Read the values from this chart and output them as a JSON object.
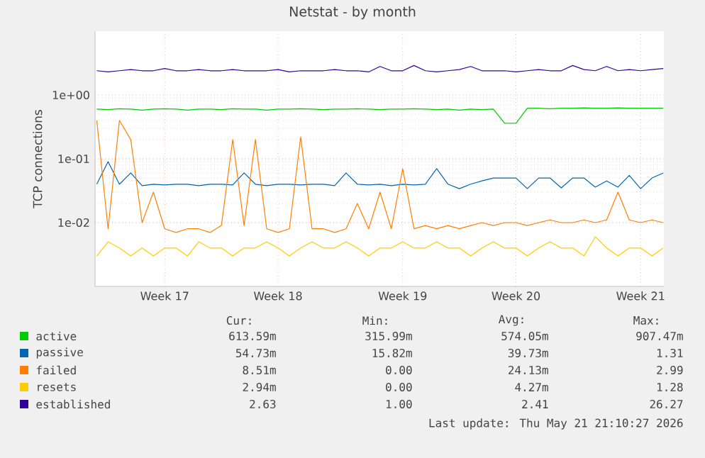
{
  "chart_data": {
    "type": "line",
    "title": "Netstat - by month",
    "ylabel": "TCP connections",
    "log": true,
    "grid": true,
    "legend": "bottom",
    "ylim": [
      0.001,
      10
    ],
    "yticks": [
      {
        "value": 0.01,
        "label": "1e-02"
      },
      {
        "value": 0.1,
        "label": "1e-01"
      },
      {
        "value": 1,
        "label": "1e+00"
      }
    ],
    "categories": [
      null,
      null,
      null,
      null,
      null,
      null,
      "Week 17",
      null,
      null,
      null,
      null,
      null,
      null,
      null,
      null,
      null,
      "Week 18",
      null,
      null,
      null,
      null,
      null,
      null,
      null,
      null,
      null,
      null,
      "Week 19",
      null,
      null,
      null,
      null,
      null,
      null,
      null,
      null,
      null,
      "Week 20",
      null,
      null,
      null,
      null,
      null,
      null,
      null,
      null,
      null,
      null,
      "Week 21",
      null,
      null
    ],
    "series": [
      {
        "name": "active",
        "color": "#00cc00",
        "values": [
          0.6,
          0.59,
          0.61,
          0.6,
          0.58,
          0.6,
          0.61,
          0.6,
          0.58,
          0.6,
          0.6,
          0.59,
          0.61,
          0.6,
          0.6,
          0.58,
          0.6,
          0.6,
          0.61,
          0.6,
          0.59,
          0.6,
          0.6,
          0.61,
          0.6,
          0.59,
          0.6,
          0.6,
          0.61,
          0.6,
          0.59,
          0.6,
          0.58,
          0.6,
          0.59,
          0.6,
          0.36,
          0.36,
          0.62,
          0.62,
          0.61,
          0.62,
          0.62,
          0.63,
          0.62,
          0.62,
          0.63,
          0.62,
          0.62,
          0.62,
          0.62
        ]
      },
      {
        "name": "passive",
        "color": "#0066b3",
        "values": [
          0.04,
          0.09,
          0.04,
          0.06,
          0.038,
          0.04,
          0.039,
          0.04,
          0.04,
          0.038,
          0.04,
          0.04,
          0.039,
          0.06,
          0.04,
          0.038,
          0.04,
          0.04,
          0.039,
          0.04,
          0.04,
          0.038,
          0.06,
          0.04,
          0.039,
          0.04,
          0.038,
          0.04,
          0.039,
          0.04,
          0.07,
          0.04,
          0.034,
          0.04,
          0.045,
          0.05,
          0.05,
          0.05,
          0.034,
          0.05,
          0.05,
          0.035,
          0.05,
          0.05,
          0.036,
          0.045,
          0.036,
          0.055,
          0.034,
          0.05,
          0.06
        ]
      },
      {
        "name": "failed",
        "color": "#ff8000",
        "values": [
          0.4,
          0.008,
          0.4,
          0.2,
          0.01,
          0.03,
          0.008,
          0.007,
          0.008,
          0.008,
          0.007,
          0.009,
          0.2,
          0.009,
          0.2,
          0.008,
          0.007,
          0.008,
          0.22,
          0.008,
          0.008,
          0.007,
          0.008,
          0.02,
          0.008,
          0.03,
          0.008,
          0.07,
          0.008,
          0.009,
          0.008,
          0.009,
          0.008,
          0.009,
          0.01,
          0.009,
          0.01,
          0.01,
          0.009,
          0.01,
          0.011,
          0.01,
          0.01,
          0.011,
          0.01,
          0.011,
          0.03,
          0.011,
          0.01,
          0.011,
          0.01
        ]
      },
      {
        "name": "resets",
        "color": "#ffcc00",
        "values": [
          0.003,
          0.005,
          0.004,
          0.003,
          0.004,
          0.003,
          0.004,
          0.004,
          0.003,
          0.005,
          0.004,
          0.004,
          0.003,
          0.004,
          0.004,
          0.005,
          0.004,
          0.003,
          0.004,
          0.005,
          0.004,
          0.004,
          0.005,
          0.004,
          0.003,
          0.004,
          0.004,
          0.005,
          0.004,
          0.004,
          0.005,
          0.004,
          0.004,
          0.003,
          0.004,
          0.005,
          0.004,
          0.004,
          0.003,
          0.004,
          0.005,
          0.004,
          0.004,
          0.003,
          0.006,
          0.004,
          0.003,
          0.004,
          0.004,
          0.003,
          0.004
        ]
      },
      {
        "name": "established",
        "color": "#330099",
        "values": [
          2.4,
          2.3,
          2.4,
          2.5,
          2.4,
          2.4,
          2.6,
          2.4,
          2.4,
          2.5,
          2.4,
          2.4,
          2.5,
          2.4,
          2.4,
          2.4,
          2.5,
          2.3,
          2.4,
          2.4,
          2.4,
          2.5,
          2.4,
          2.4,
          2.3,
          2.8,
          2.4,
          2.4,
          2.9,
          2.4,
          2.3,
          2.4,
          2.5,
          2.8,
          2.4,
          2.4,
          2.4,
          2.3,
          2.4,
          2.5,
          2.4,
          2.4,
          2.9,
          2.5,
          2.4,
          2.8,
          2.4,
          2.5,
          2.4,
          2.5,
          2.6
        ]
      }
    ],
    "annotations": [
      "Cur:",
      "Min:",
      "Avg:",
      "Max:",
      "613.59m",
      "315.99m",
      "574.05m",
      "907.47m",
      "54.73m",
      "15.82m",
      "39.73m",
      "1.31",
      "8.51m",
      "0.00",
      "24.13m",
      "2.99",
      "2.94m",
      "0.00",
      "4.27m",
      "1.28",
      "2.63",
      "1.00",
      "2.41",
      "26.27",
      "Last update: Thu May 21 21:10:27 2026"
    ]
  }
}
